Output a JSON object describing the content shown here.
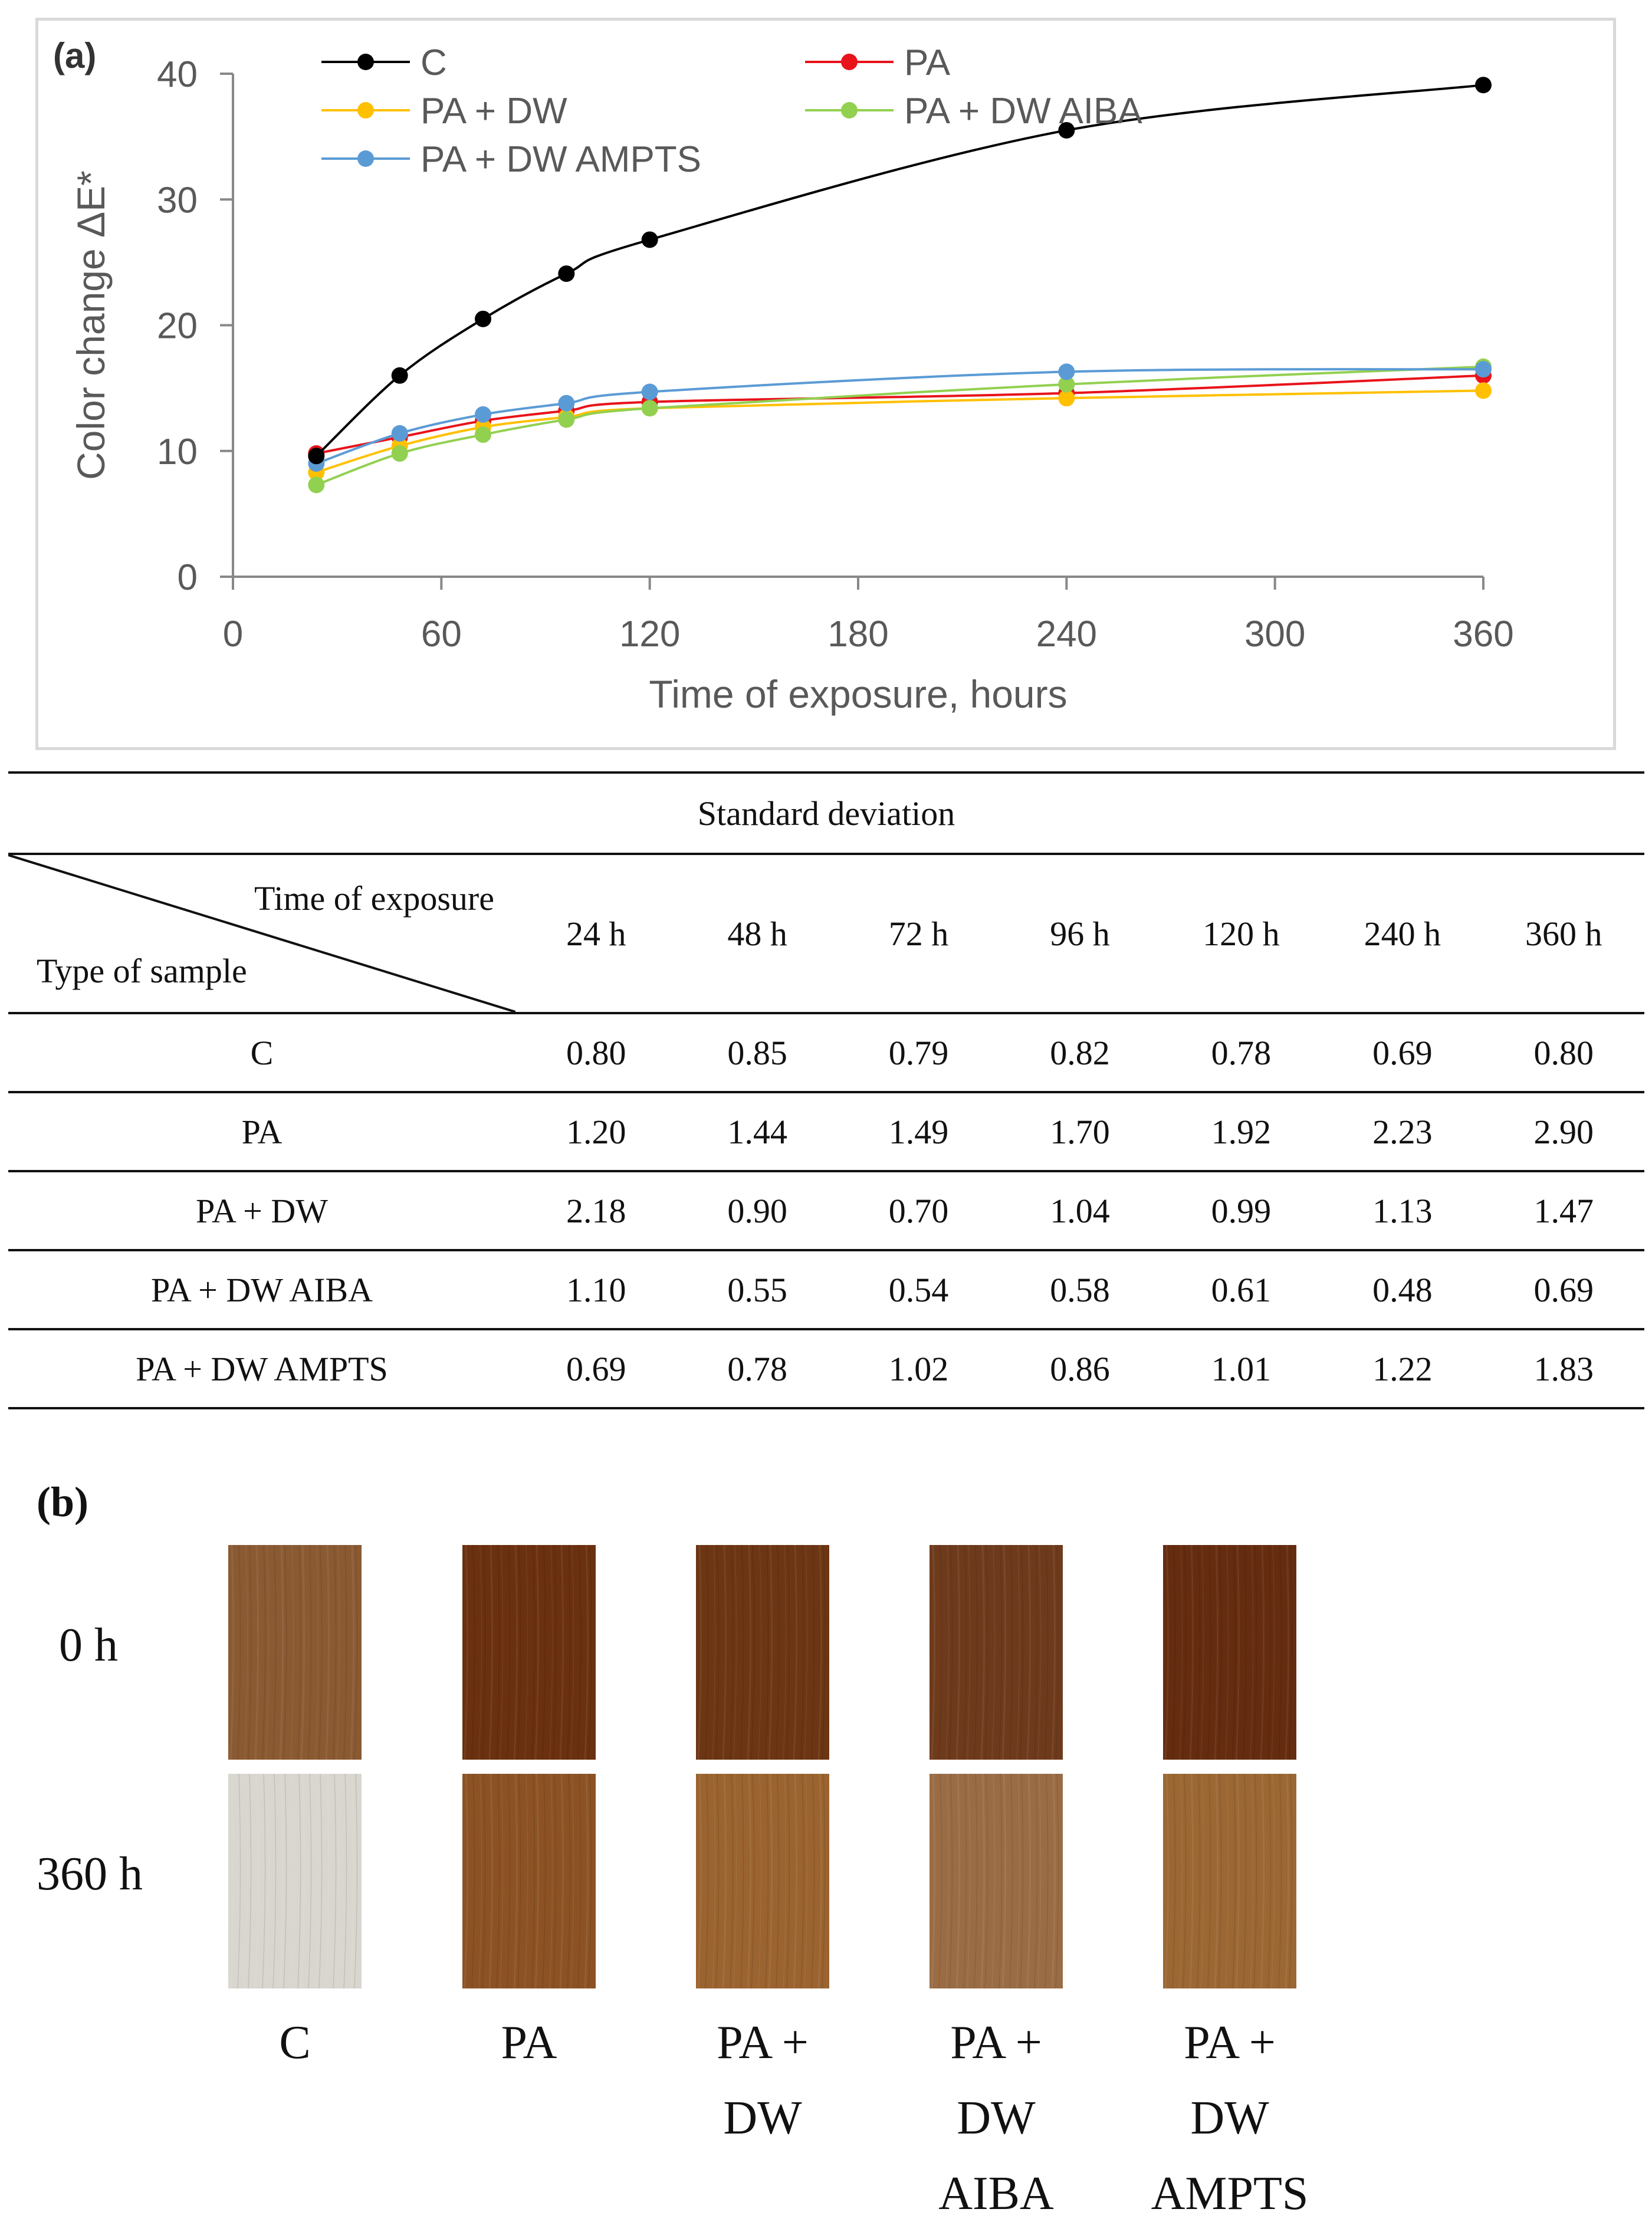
{
  "chart_data": {
    "type": "line",
    "panel_label": "(a)",
    "xlabel": "Time of exposure, hours",
    "ylabel": "Color change ΔE*",
    "xlim": [
      0,
      360
    ],
    "ylim": [
      0,
      40
    ],
    "xticks": [
      0,
      60,
      120,
      180,
      240,
      300,
      360
    ],
    "yticks": [
      0,
      10,
      20,
      30,
      40
    ],
    "grid": false,
    "legend_position": "top",
    "x": [
      24,
      48,
      72,
      96,
      120,
      240,
      360
    ],
    "series": [
      {
        "name": "C",
        "color": "#000000",
        "values": [
          9.6,
          16.0,
          20.5,
          24.1,
          26.8,
          35.5,
          39.1
        ]
      },
      {
        "name": "PA",
        "color": "#e8131b",
        "values": [
          9.8,
          11.1,
          12.4,
          13.2,
          13.9,
          14.6,
          16.0
        ]
      },
      {
        "name": "PA + DW",
        "color": "#ffc000",
        "values": [
          8.3,
          10.4,
          11.9,
          12.7,
          13.4,
          14.2,
          14.8
        ]
      },
      {
        "name": "PA + DW AIBA",
        "color": "#92d050",
        "values": [
          7.3,
          9.8,
          11.3,
          12.5,
          13.4,
          15.3,
          16.7
        ]
      },
      {
        "name": "PA + DW AMPTS",
        "color": "#5b9bd5",
        "values": [
          9.0,
          11.4,
          12.9,
          13.8,
          14.7,
          16.3,
          16.5
        ]
      }
    ]
  },
  "table": {
    "title": "Standard deviation",
    "corner_top": "Time of exposure",
    "corner_bottom": "Type of sample",
    "columns": [
      "24 h",
      "48 h",
      "72 h",
      "96 h",
      "120 h",
      "240 h",
      "360 h"
    ],
    "rows": [
      {
        "label": "C",
        "values": [
          "0.80",
          "0.85",
          "0.79",
          "0.82",
          "0.78",
          "0.69",
          "0.80"
        ]
      },
      {
        "label": "PA",
        "values": [
          "1.20",
          "1.44",
          "1.49",
          "1.70",
          "1.92",
          "2.23",
          "2.90"
        ]
      },
      {
        "label": "PA + DW",
        "values": [
          "2.18",
          "0.90",
          "0.70",
          "1.04",
          "0.99",
          "1.13",
          "1.47"
        ]
      },
      {
        "label": "PA + DW AIBA",
        "values": [
          "1.10",
          "0.55",
          "0.54",
          "0.58",
          "0.61",
          "0.48",
          "0.69"
        ]
      },
      {
        "label": "PA + DW AMPTS",
        "values": [
          "0.69",
          "0.78",
          "1.02",
          "0.86",
          "1.01",
          "1.22",
          "1.83"
        ]
      }
    ]
  },
  "photos": {
    "panel_label": "(b)",
    "row_labels": [
      "0 h",
      "360 h"
    ],
    "samples": [
      {
        "label_lines": [
          "C"
        ],
        "color_0h": "#8a5a32",
        "color_360h": "#d9d6cf"
      },
      {
        "label_lines": [
          "PA"
        ],
        "color_0h": "#6a300f",
        "color_360h": "#8c5224"
      },
      {
        "label_lines": [
          "PA +",
          "DW"
        ],
        "color_0h": "#6c3513",
        "color_360h": "#9a632f"
      },
      {
        "label_lines": [
          "PA +",
          "DW",
          "AIBA"
        ],
        "color_0h": "#6e3a1c",
        "color_360h": "#9a6c45"
      },
      {
        "label_lines": [
          "PA +",
          "DW",
          "AMPTS"
        ],
        "color_0h": "#652c10",
        "color_360h": "#9b6733"
      }
    ]
  }
}
